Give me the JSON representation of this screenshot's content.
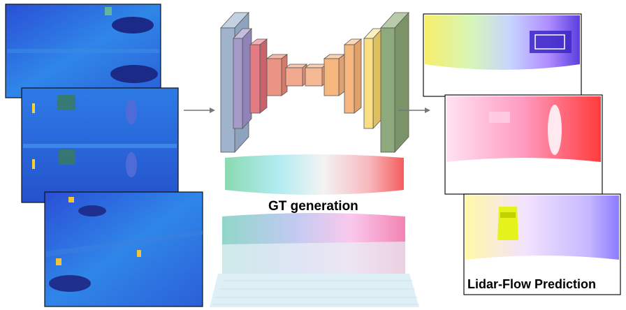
{
  "labels": {
    "gt_generation": "GT generation",
    "lidar_flow_prediction": "Lidar-Flow Prediction"
  },
  "colors": {
    "encoder_blue": "#9fb4cc",
    "encoder_purple": "#a59bc8",
    "encoder_red": "#e27b83",
    "decoder_orange": "#f6b77e",
    "decoder_yellow": "#f9de84",
    "decoder_green": "#8ea97c",
    "depth_blue": "#2c6fe0",
    "arrow": "#777777"
  },
  "icons": {
    "arrow_in": "right-arrow-icon",
    "arrow_out": "right-arrow-icon"
  }
}
